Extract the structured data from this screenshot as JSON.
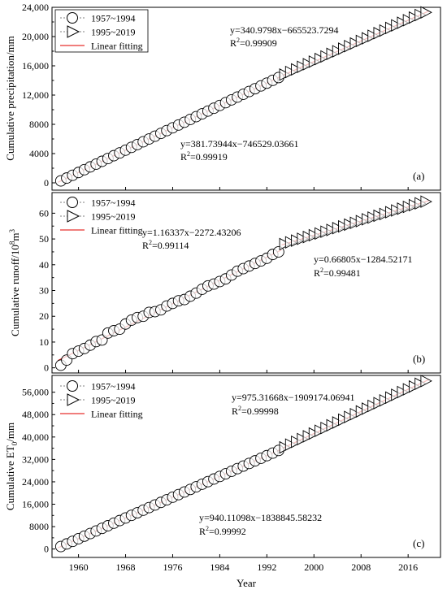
{
  "chart_data": [
    {
      "type": "scatter",
      "panel_label": "(a)",
      "ylabel": "Cumulative precipitation/mm",
      "ylim": [
        -1000,
        24000
      ],
      "yticks": [
        0,
        4000,
        8000,
        12000,
        16000,
        20000,
        24000
      ],
      "ytick_labels": [
        "0",
        "4000",
        "8000",
        "12,000",
        "16,000",
        "20,000",
        "24,000"
      ],
      "xlim": [
        1955.5,
        2021.5
      ],
      "series": [
        {
          "name": "1957~1994",
          "marker": "circle",
          "x_start": 1957,
          "x_end": 1994,
          "y_start": 270,
          "y_end": 14400
        },
        {
          "name": "1995~2019",
          "marker": "triangle-right",
          "x_start": 1995,
          "x_end": 2019,
          "y_start": 14800,
          "y_end": 23300
        },
        {
          "name": "Linear fitting",
          "marker": "line",
          "color": "#e8322f"
        }
      ],
      "equations": [
        {
          "eq": "y=340.9798x−665523.7294",
          "r2_prefix": "R",
          "r2_sup": "2",
          "r2_rest": "=0.99909"
        },
        {
          "eq": "y=381.73944x−746529.03661",
          "r2_prefix": "R",
          "r2_sup": "2",
          "r2_rest": "=0.99919"
        }
      ]
    },
    {
      "type": "scatter",
      "panel_label": "(b)",
      "ylabel_main": "Cumulative runoff/10",
      "ylabel_sup1": "8",
      "ylabel_mid": "m",
      "ylabel_sup2": "3",
      "ylim": [
        -2,
        68
      ],
      "yticks": [
        0,
        10,
        20,
        30,
        40,
        50,
        60
      ],
      "ytick_labels": [
        "0",
        "10",
        "20",
        "30",
        "40",
        "50",
        "60"
      ],
      "xlim": [
        1955.5,
        2021.5
      ],
      "series": [
        {
          "name": "1957~1994",
          "marker": "circle",
          "x_start": 1957,
          "x_end": 1994,
          "values": [
            1.0,
            3.0,
            5.5,
            6.5,
            7.5,
            8.8,
            10.2,
            10.8,
            13.5,
            14.4,
            15.0,
            17.0,
            18.5,
            19.5,
            20.0,
            21.5,
            21.8,
            22.5,
            24.0,
            25.0,
            26.0,
            26.5,
            27.8,
            29.0,
            30.5,
            31.8,
            32.5,
            33.5,
            34.5,
            36.0,
            37.5,
            38.5,
            39.5,
            40.5,
            41.5,
            42.5,
            44.0,
            45.0
          ]
        },
        {
          "name": "1995~2019",
          "marker": "triangle-right",
          "x_start": 1995,
          "x_end": 2019,
          "y_start": 48.0,
          "y_end": 64.5
        },
        {
          "name": "Linear fitting",
          "marker": "line",
          "color": "#e8322f"
        }
      ],
      "equations": [
        {
          "eq": "y=1.16337x−2272.43206",
          "r2_prefix": "R",
          "r2_sup": "2",
          "r2_rest": "=0.99114"
        },
        {
          "eq": "y=0.66805x−1284.52171",
          "r2_prefix": "R",
          "r2_sup": "2",
          "r2_rest": "=0.99481"
        }
      ]
    },
    {
      "type": "scatter",
      "panel_label": "(c)",
      "ylabel_main": "Cumulative ET",
      "ylabel_sub": "0",
      "ylabel_rest": "/mm",
      "ylim": [
        -3000,
        62000
      ],
      "yticks": [
        0,
        8000,
        16000,
        24000,
        32000,
        40000,
        48000,
        56000
      ],
      "ytick_labels": [
        "0",
        "8000",
        "16,000",
        "24,000",
        "32,000",
        "40,000",
        "48,000",
        "56,000"
      ],
      "xlim": [
        1955.5,
        2021.5
      ],
      "xticks": [
        1960,
        1968,
        1976,
        1984,
        1992,
        2000,
        2008,
        2016
      ],
      "xtick_labels": [
        "1960",
        "1968",
        "1976",
        "1984",
        "1992",
        "2000",
        "2008",
        "2016"
      ],
      "xlabel": "Year",
      "series": [
        {
          "name": "1957~1994",
          "marker": "circle",
          "x_start": 1957,
          "x_end": 1994,
          "y_start": 900,
          "y_end": 35200
        },
        {
          "name": "1995~2019",
          "marker": "triangle-right",
          "x_start": 1995,
          "x_end": 2019,
          "y_start": 36300,
          "y_end": 60000
        },
        {
          "name": "Linear fitting",
          "marker": "line",
          "color": "#e8322f"
        }
      ],
      "equations": [
        {
          "eq": "y=975.31668x−1909174.06941",
          "r2_prefix": "R",
          "r2_sup": "2",
          "r2_rest": "=0.99998"
        },
        {
          "eq": "y=940.11098x−1838845.58232",
          "r2_prefix": "R",
          "r2_sup": "2",
          "r2_rest": "=0.99992"
        }
      ]
    }
  ]
}
